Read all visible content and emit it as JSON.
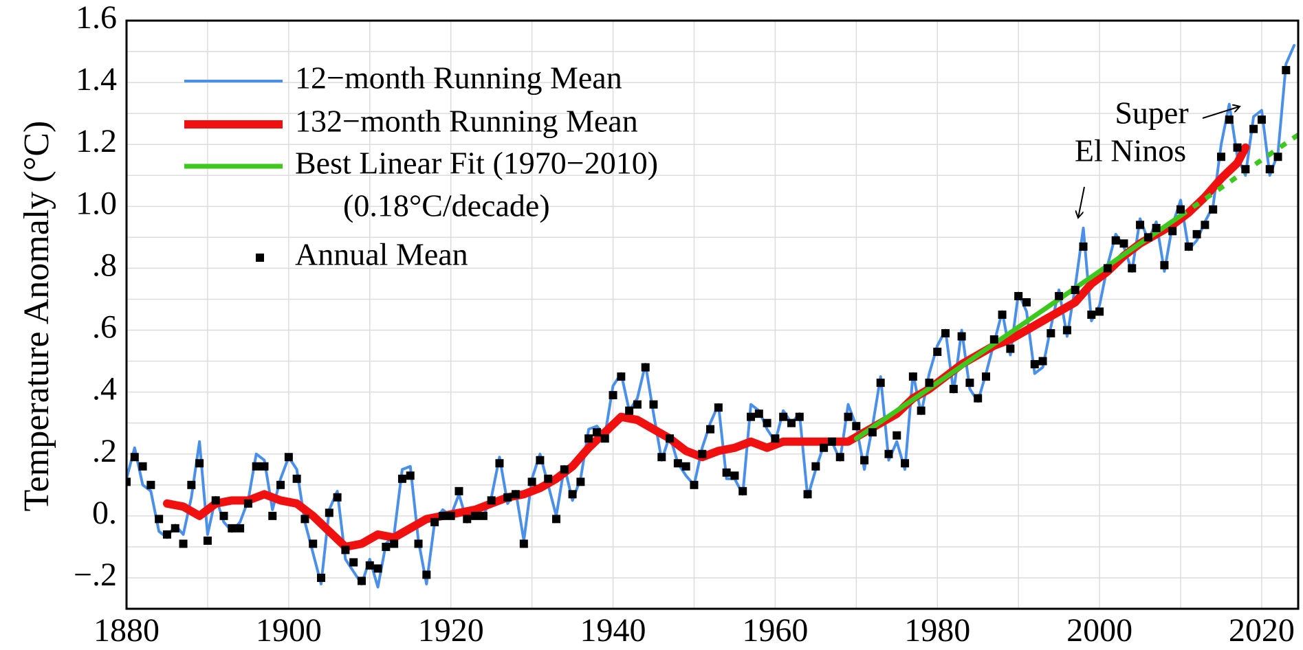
{
  "chart_data": {
    "type": "line",
    "y_label": "Temperature Anomaly (°C)",
    "xlim": [
      1880,
      2024.5
    ],
    "ylim": [
      -0.3,
      1.6
    ],
    "xticks": [
      1880,
      1900,
      1920,
      1940,
      1960,
      1980,
      2000,
      2020
    ],
    "x_minor_ticks": [
      1890,
      1910,
      1930,
      1950,
      1970,
      1990,
      2010
    ],
    "yticks": [
      {
        "value": -0.2,
        "label": "−.2"
      },
      {
        "value": 0,
        "label": "0."
      },
      {
        "value": 0.2,
        "label": ".2"
      },
      {
        "value": 0.4,
        "label": ".4"
      },
      {
        "value": 0.6,
        "label": ".6"
      },
      {
        "value": 0.8,
        "label": ".8"
      },
      {
        "value": 1,
        "label": "1.0"
      },
      1.2,
      1.4,
      1.6
    ],
    "y_minor_ticks": [
      -0.1,
      0.1,
      0.3,
      0.5,
      0.7,
      0.9,
      1.1,
      1.3,
      1.5
    ],
    "grid": true,
    "annotations": [
      "Super",
      "El Ninos"
    ],
    "series": [
      {
        "name": "12−month Running Mean",
        "color": "#4a90e8",
        "style": "line",
        "width": 4,
        "x": [
          1880,
          1881,
          1882,
          1883,
          1884,
          1885,
          1886,
          1887,
          1888,
          1889,
          1890,
          1891,
          1892,
          1893,
          1894,
          1895,
          1896,
          1897,
          1898,
          1899,
          1900,
          1901,
          1902,
          1903,
          1904,
          1905,
          1906,
          1907,
          1908,
          1909,
          1910,
          1911,
          1912,
          1913,
          1914,
          1915,
          1916,
          1917,
          1918,
          1919,
          1920,
          1921,
          1922,
          1923,
          1924,
          1925,
          1926,
          1927,
          1928,
          1929,
          1930,
          1931,
          1932,
          1933,
          1934,
          1935,
          1936,
          1937,
          1938,
          1939,
          1940,
          1941,
          1942,
          1943,
          1944,
          1945,
          1946,
          1947,
          1948,
          1949,
          1950,
          1951,
          1952,
          1953,
          1954,
          1955,
          1956,
          1957,
          1958,
          1959,
          1960,
          1961,
          1962,
          1963,
          1964,
          1965,
          1966,
          1967,
          1968,
          1969,
          1970,
          1971,
          1972,
          1973,
          1974,
          1975,
          1976,
          1977,
          1978,
          1979,
          1980,
          1981,
          1982,
          1983,
          1984,
          1985,
          1986,
          1987,
          1988,
          1989,
          1990,
          1991,
          1992,
          1993,
          1994,
          1995,
          1996,
          1997,
          1998,
          1999,
          2000,
          2001,
          2002,
          2003,
          2004,
          2005,
          2006,
          2007,
          2008,
          2009,
          2010,
          2011,
          2012,
          2013,
          2014,
          2015,
          2016,
          2017,
          2018,
          2019,
          2020,
          2021,
          2022,
          2023,
          2024
        ],
        "values": [
          0.12,
          0.22,
          0.1,
          0.08,
          -0.05,
          -0.07,
          -0.03,
          -0.06,
          0.06,
          0.24,
          -0.06,
          0.06,
          -0.02,
          -0.05,
          -0.02,
          0.05,
          0.2,
          0.18,
          0.02,
          0.12,
          0.19,
          0.15,
          -0.02,
          -0.12,
          -0.22,
          0.02,
          0.08,
          -0.14,
          -0.18,
          -0.22,
          -0.14,
          -0.23,
          -0.09,
          -0.06,
          0.15,
          0.16,
          -0.08,
          -0.22,
          -0.02,
          0.02,
          0.0,
          0.07,
          -0.02,
          0.02,
          0.0,
          0.06,
          0.19,
          0.04,
          0.08,
          -0.08,
          0.12,
          0.2,
          0.1,
          0.0,
          0.16,
          0.05,
          0.12,
          0.28,
          0.29,
          0.26,
          0.42,
          0.46,
          0.34,
          0.38,
          0.49,
          0.33,
          0.18,
          0.26,
          0.17,
          0.13,
          0.1,
          0.22,
          0.3,
          0.36,
          0.12,
          0.12,
          0.07,
          0.36,
          0.34,
          0.28,
          0.24,
          0.34,
          0.3,
          0.33,
          0.06,
          0.15,
          0.23,
          0.24,
          0.18,
          0.36,
          0.29,
          0.15,
          0.29,
          0.45,
          0.18,
          0.24,
          0.15,
          0.46,
          0.33,
          0.46,
          0.55,
          0.6,
          0.4,
          0.6,
          0.41,
          0.37,
          0.46,
          0.56,
          0.66,
          0.52,
          0.72,
          0.66,
          0.46,
          0.48,
          0.61,
          0.73,
          0.58,
          0.74,
          0.93,
          0.63,
          0.68,
          0.81,
          0.91,
          0.87,
          0.79,
          0.96,
          0.89,
          0.95,
          0.79,
          0.94,
          1.02,
          0.86,
          0.89,
          0.95,
          1.0,
          1.2,
          1.33,
          1.16,
          1.1,
          1.29,
          1.31,
          1.1,
          1.17,
          1.46,
          1.52
        ]
      },
      {
        "name": "132−month Running Mean",
        "color": "#f01010",
        "style": "line",
        "width": 12,
        "x": [
          1885,
          1887,
          1889,
          1891,
          1893,
          1895,
          1897,
          1899,
          1901,
          1903,
          1905,
          1907,
          1909,
          1911,
          1913,
          1915,
          1917,
          1919,
          1921,
          1923,
          1925,
          1927,
          1929,
          1931,
          1933,
          1935,
          1937,
          1939,
          1941,
          1943,
          1945,
          1947,
          1949,
          1951,
          1953,
          1955,
          1957,
          1959,
          1961,
          1963,
          1965,
          1967,
          1969,
          1971,
          1973,
          1975,
          1977,
          1979,
          1981,
          1983,
          1985,
          1987,
          1989,
          1991,
          1993,
          1995,
          1997,
          1999,
          2001,
          2003,
          2005,
          2007,
          2009,
          2011,
          2013,
          2015,
          2017,
          2018
        ],
        "values": [
          0.04,
          0.03,
          0.0,
          0.04,
          0.05,
          0.05,
          0.07,
          0.05,
          0.04,
          0.0,
          -0.05,
          -0.1,
          -0.09,
          -0.06,
          -0.07,
          -0.04,
          -0.01,
          0.0,
          0.01,
          0.02,
          0.04,
          0.06,
          0.07,
          0.09,
          0.12,
          0.16,
          0.22,
          0.27,
          0.32,
          0.31,
          0.28,
          0.25,
          0.21,
          0.19,
          0.21,
          0.22,
          0.24,
          0.22,
          0.24,
          0.24,
          0.24,
          0.24,
          0.24,
          0.27,
          0.3,
          0.33,
          0.38,
          0.41,
          0.45,
          0.49,
          0.52,
          0.55,
          0.57,
          0.6,
          0.63,
          0.66,
          0.69,
          0.75,
          0.79,
          0.84,
          0.88,
          0.91,
          0.94,
          0.98,
          1.03,
          1.09,
          1.14,
          1.19
        ]
      },
      {
        "name": "Best Linear Fit (1970−2010)",
        "note": "(0.18°C/decade)",
        "color": "#3ec81e",
        "style": "line",
        "width": 7,
        "x": [
          1970,
          2010
        ],
        "values": [
          0.25,
          0.97
        ]
      },
      {
        "color": "#3ec81e",
        "style": "line",
        "width": 7,
        "dashed": true,
        "x": [
          2010,
          2024.5
        ],
        "values": [
          0.97,
          1.231
        ]
      },
      {
        "name": "Annual Mean",
        "color": "#000000",
        "style": "markers",
        "width": 12,
        "x": [
          1880,
          1881,
          1882,
          1883,
          1884,
          1885,
          1886,
          1887,
          1888,
          1889,
          1890,
          1891,
          1892,
          1893,
          1894,
          1895,
          1896,
          1897,
          1898,
          1899,
          1900,
          1901,
          1902,
          1903,
          1904,
          1905,
          1906,
          1907,
          1908,
          1909,
          1910,
          1911,
          1912,
          1913,
          1914,
          1915,
          1916,
          1917,
          1918,
          1919,
          1920,
          1921,
          1922,
          1923,
          1924,
          1925,
          1926,
          1927,
          1928,
          1929,
          1930,
          1931,
          1932,
          1933,
          1934,
          1935,
          1936,
          1937,
          1938,
          1939,
          1940,
          1941,
          1942,
          1943,
          1944,
          1945,
          1946,
          1947,
          1948,
          1949,
          1950,
          1951,
          1952,
          1953,
          1954,
          1955,
          1956,
          1957,
          1958,
          1959,
          1960,
          1961,
          1962,
          1963,
          1964,
          1965,
          1966,
          1967,
          1968,
          1969,
          1970,
          1971,
          1972,
          1973,
          1974,
          1975,
          1976,
          1977,
          1978,
          1979,
          1980,
          1981,
          1982,
          1983,
          1984,
          1985,
          1986,
          1987,
          1988,
          1989,
          1990,
          1991,
          1992,
          1993,
          1994,
          1995,
          1996,
          1997,
          1998,
          1999,
          2000,
          2001,
          2002,
          2003,
          2004,
          2005,
          2006,
          2007,
          2008,
          2009,
          2010,
          2011,
          2012,
          2013,
          2014,
          2015,
          2016,
          2017,
          2018,
          2019,
          2020,
          2021,
          2022,
          2023
        ],
        "values": [
          0.11,
          0.19,
          0.16,
          0.1,
          -0.01,
          -0.06,
          -0.04,
          -0.09,
          0.1,
          0.17,
          -0.08,
          0.05,
          0.0,
          -0.04,
          -0.04,
          0.04,
          0.16,
          0.16,
          0.0,
          0.1,
          0.19,
          0.12,
          -0.01,
          -0.09,
          -0.2,
          0.01,
          0.06,
          -0.11,
          -0.15,
          -0.21,
          -0.16,
          -0.17,
          -0.1,
          -0.09,
          0.12,
          0.13,
          -0.09,
          -0.19,
          -0.02,
          0.0,
          0.0,
          0.08,
          -0.01,
          0.0,
          0.0,
          0.05,
          0.17,
          0.06,
          0.07,
          -0.09,
          0.11,
          0.18,
          0.12,
          -0.01,
          0.15,
          0.07,
          0.11,
          0.25,
          0.27,
          0.25,
          0.39,
          0.45,
          0.34,
          0.36,
          0.48,
          0.36,
          0.19,
          0.25,
          0.17,
          0.16,
          0.1,
          0.2,
          0.28,
          0.35,
          0.14,
          0.13,
          0.08,
          0.32,
          0.33,
          0.3,
          0.25,
          0.32,
          0.3,
          0.32,
          0.07,
          0.16,
          0.22,
          0.24,
          0.19,
          0.32,
          0.29,
          0.18,
          0.27,
          0.43,
          0.2,
          0.26,
          0.17,
          0.45,
          0.34,
          0.43,
          0.53,
          0.59,
          0.41,
          0.58,
          0.43,
          0.38,
          0.45,
          0.57,
          0.65,
          0.54,
          0.71,
          0.69,
          0.49,
          0.5,
          0.59,
          0.71,
          0.6,
          0.73,
          0.87,
          0.65,
          0.66,
          0.8,
          0.89,
          0.88,
          0.8,
          0.94,
          0.9,
          0.93,
          0.81,
          0.92,
          0.99,
          0.87,
          0.91,
          0.94,
          0.99,
          1.16,
          1.28,
          1.19,
          1.12,
          1.25,
          1.28,
          1.12,
          1.16,
          1.44
        ]
      }
    ]
  }
}
